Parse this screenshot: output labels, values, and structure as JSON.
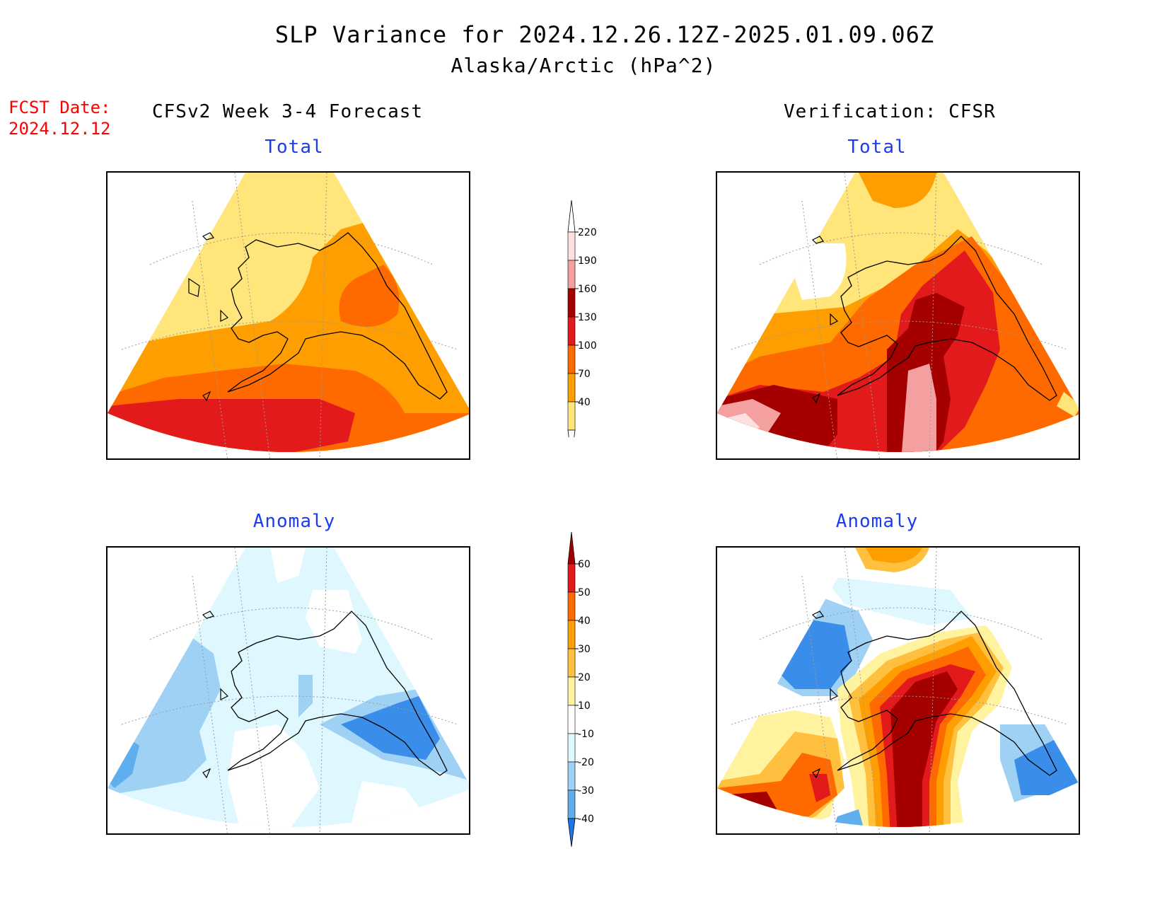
{
  "title": {
    "line1": "SLP Variance for 2024.12.26.12Z-2025.01.09.06Z",
    "line2": "Alaska/Arctic (hPa^2)"
  },
  "forecast_date": {
    "label": "FCST Date:",
    "value": "2024.12.12"
  },
  "columns": {
    "left": "CFSv2 Week 3-4 Forecast",
    "right": "Verification: CFSR"
  },
  "panels": {
    "top_left": "Total",
    "top_right": "Total",
    "bottom_left": "Anomaly",
    "bottom_right": "Anomaly"
  },
  "colorbars": {
    "total": {
      "labels": [
        "220",
        "190",
        "160",
        "130",
        "100",
        "70",
        "40"
      ],
      "colors": [
        "#fde0e0",
        "#f4a0a0",
        "#a50000",
        "#e31a1c",
        "#ff6a00",
        "#ff9e00",
        "#ffe57a"
      ]
    },
    "anomaly": {
      "labels": [
        "60",
        "50",
        "40",
        "30",
        "20",
        "10",
        "-10",
        "-20",
        "-30",
        "-40"
      ],
      "colors": [
        "#a50000",
        "#e31a1c",
        "#ff6a00",
        "#ff9e00",
        "#ffc040",
        "#fff3a0",
        "#ffffff",
        "#dff7ff",
        "#9fd1f5",
        "#5faeee",
        "#1f78e8"
      ]
    }
  }
}
